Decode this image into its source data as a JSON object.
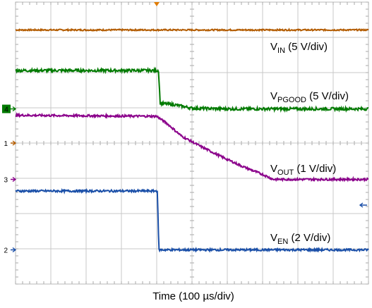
{
  "chart_data": {
    "type": "line",
    "title": "",
    "xlabel": "Time (100 µs/div)",
    "ylabel": "",
    "divisions": {
      "x": 10,
      "y": 8
    },
    "xlim": [
      0,
      10
    ],
    "ylim": [
      0,
      8
    ],
    "grid": true,
    "trigger_marker_x": 4.0,
    "series": [
      {
        "name": "VIN (5 V/div)",
        "label_main": "V",
        "label_sub": "IN",
        "label_rest": " (5 V/div)",
        "color": "#b35c00",
        "marker": "",
        "marker_level": null,
        "noise": 0.02,
        "points": [
          [
            0,
            7.21
          ],
          [
            10,
            7.21
          ]
        ]
      },
      {
        "name": "VPGOOD (5 V/div)",
        "label_main": "V",
        "label_sub": "PGOOD",
        "label_rest": " (5 V/div)",
        "color": "#007a00",
        "marker": "4",
        "marker_level": 4.97,
        "noise": 0.04,
        "points": [
          [
            0,
            6.06
          ],
          [
            4.05,
            6.06
          ],
          [
            4.1,
            5.13
          ],
          [
            4.5,
            5.09
          ],
          [
            5.0,
            4.99
          ],
          [
            6.0,
            4.97
          ],
          [
            10,
            4.97
          ]
        ]
      },
      {
        "name": "VOUT (1 V/div)",
        "label_main": "V",
        "label_sub": "OUT",
        "label_rest": " (1 V/div)",
        "color": "#8b008b",
        "marker": "3",
        "marker_level": 2.97,
        "noise": 0.03,
        "points": [
          [
            0,
            4.79
          ],
          [
            4.0,
            4.76
          ],
          [
            4.3,
            4.55
          ],
          [
            4.7,
            4.2
          ],
          [
            5.2,
            3.93
          ],
          [
            5.8,
            3.63
          ],
          [
            6.4,
            3.35
          ],
          [
            7.0,
            3.11
          ],
          [
            7.3,
            2.97
          ],
          [
            10,
            2.97
          ]
        ]
      },
      {
        "name": "VEN (2 V/div)",
        "label_main": "V",
        "label_sub": "EN",
        "label_rest": " (2 V/div)",
        "color": "#1a4fa8",
        "marker": "2",
        "marker_level": 0.97,
        "noise": 0.03,
        "points": [
          [
            0,
            2.64
          ],
          [
            4.02,
            2.64
          ],
          [
            4.06,
            0.97
          ],
          [
            10,
            0.97
          ]
        ]
      }
    ],
    "extra_markers": [
      {
        "label": "1",
        "level": 4.0,
        "color": "#b35c00"
      }
    ]
  }
}
